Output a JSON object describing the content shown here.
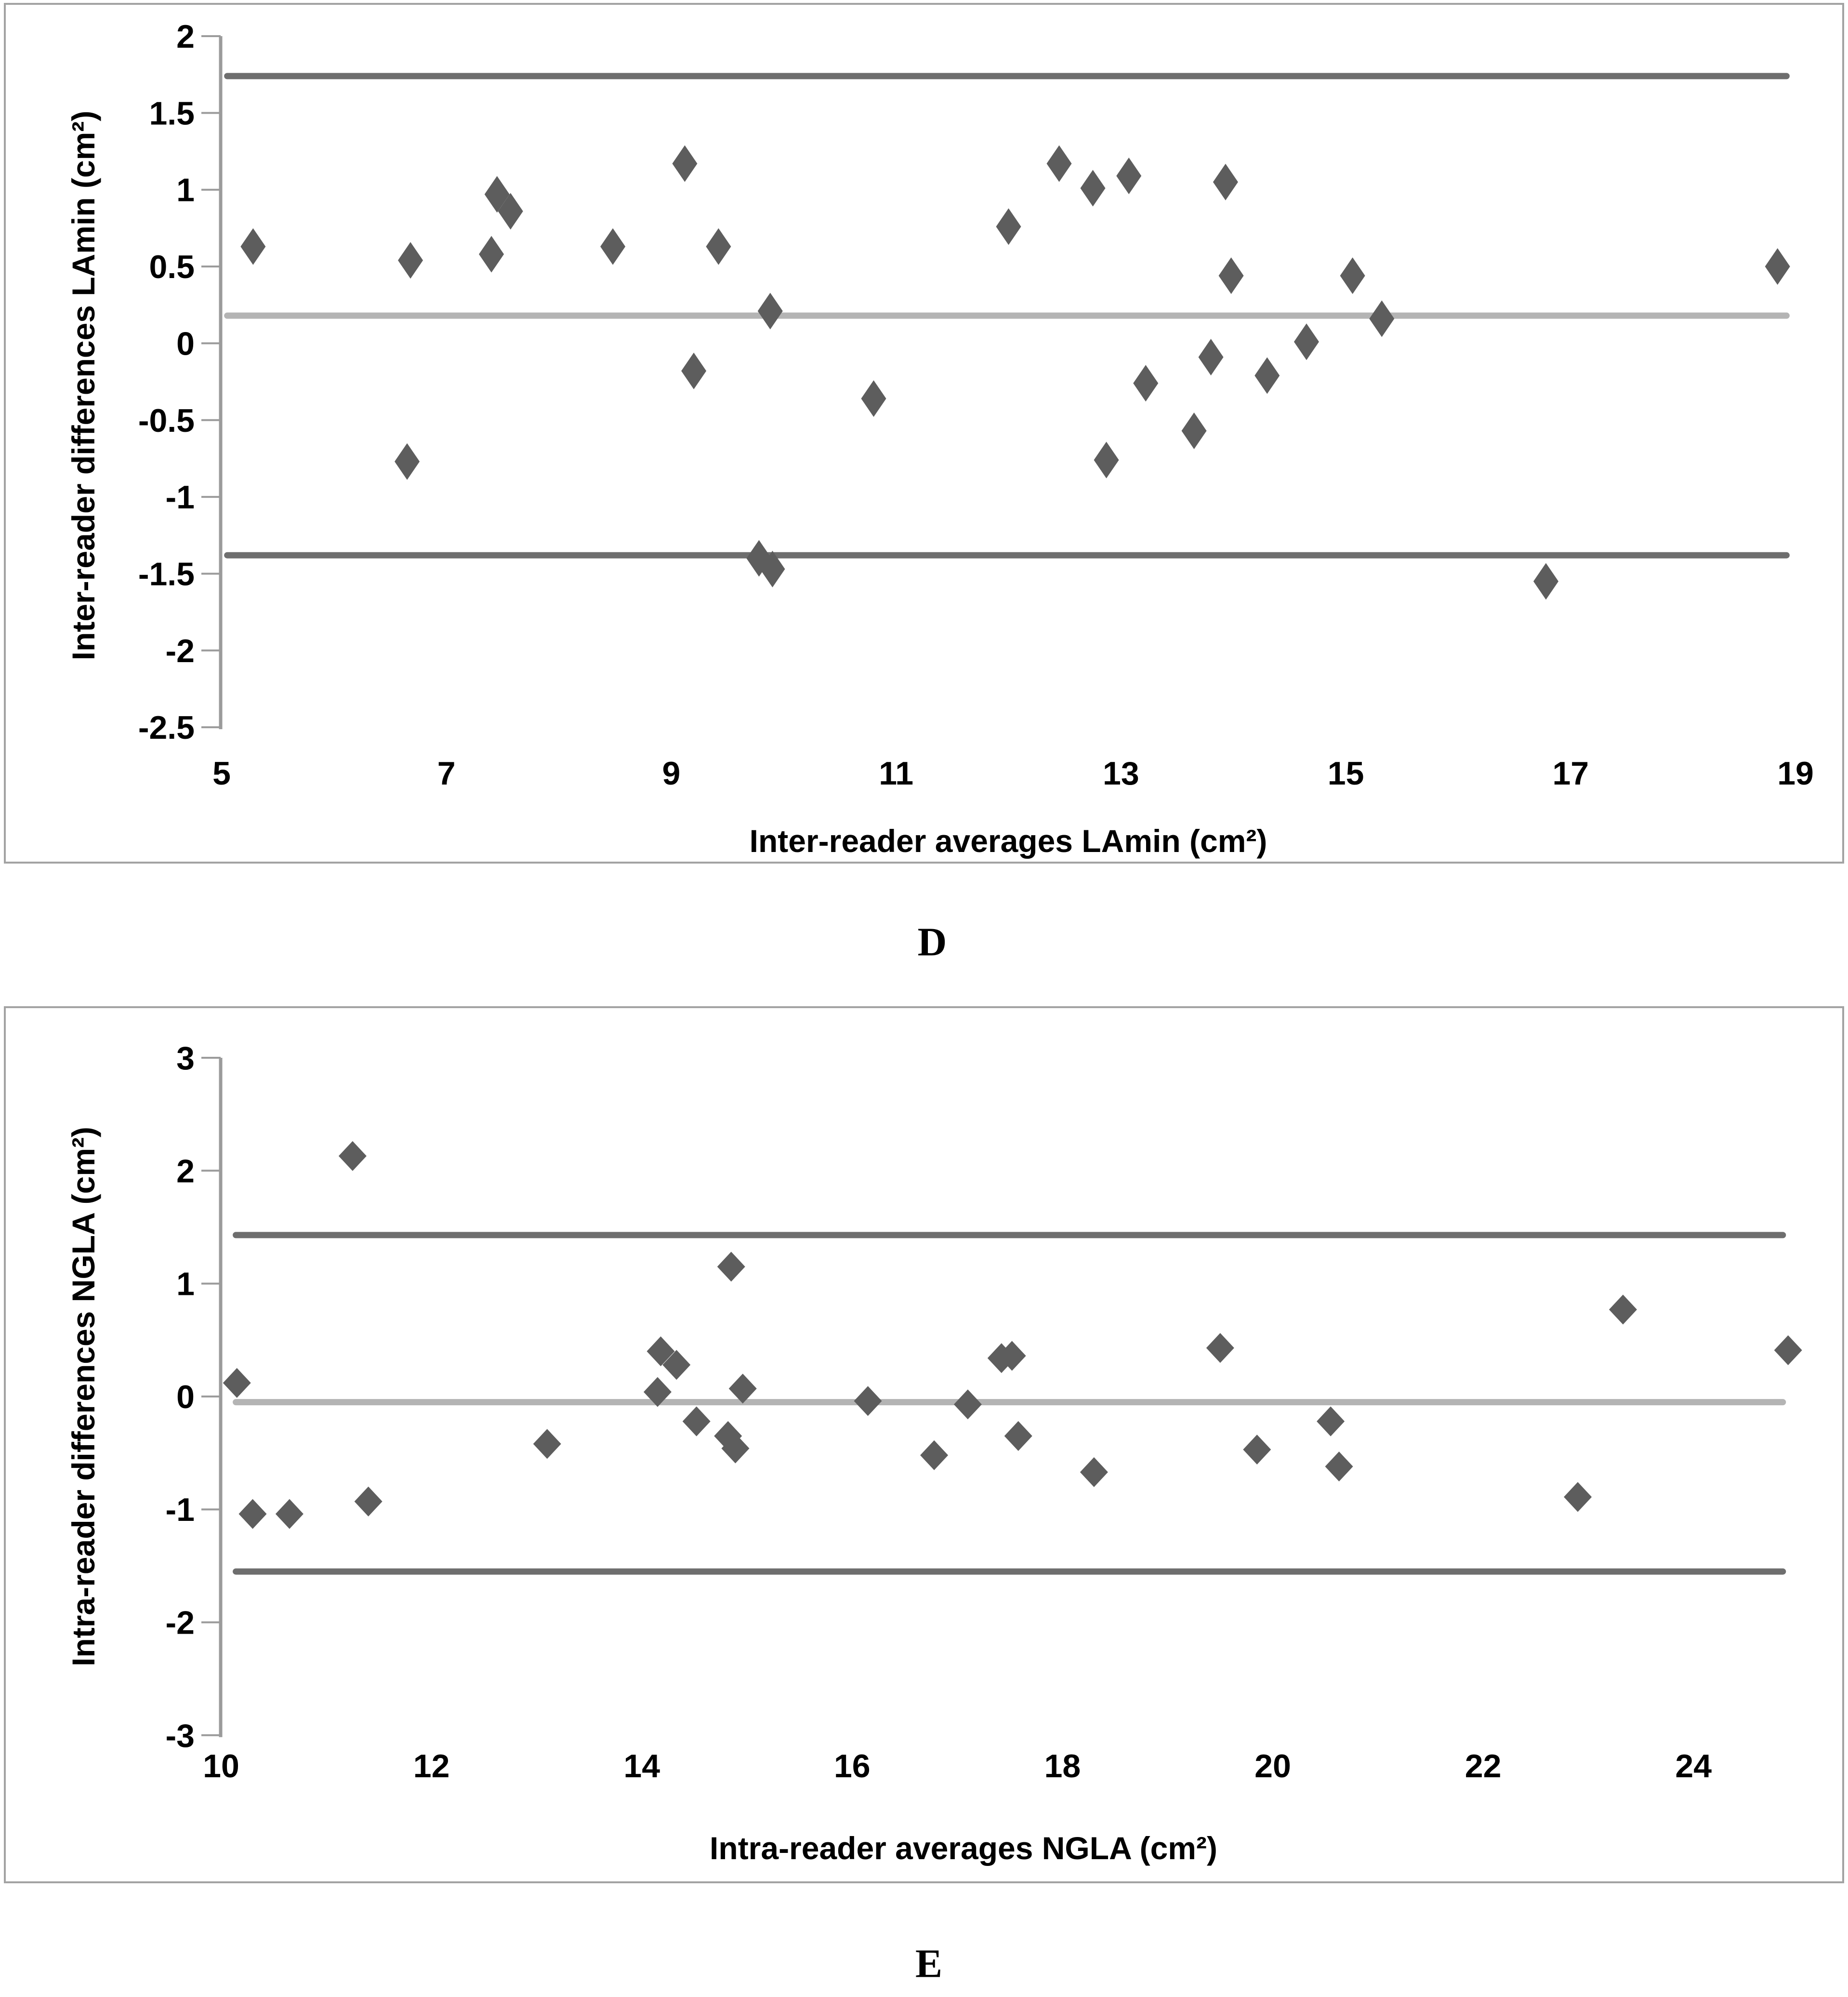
{
  "figure": {
    "panel_d_label": "D",
    "panel_e_label": "E"
  },
  "colors": {
    "marker": "#5d5d5d",
    "loa_line": "#6e6e6e",
    "mean_line": "#b4b4b4",
    "axis": "#9b9b9b",
    "panel_border": "#a3a3a3",
    "text": "#000000"
  },
  "chart_data": [
    {
      "type": "scatter",
      "panel_label": "D",
      "xlabel": "Inter-reader averages LAmin (cm²)",
      "ylabel": "Inter-reader differences LAmin (cm²)",
      "xlim": [
        5,
        19.45
      ],
      "ylim": [
        -2.5,
        2
      ],
      "x_ticks": [
        "5",
        "7",
        "9",
        "11",
        "13",
        "15",
        "17",
        "19"
      ],
      "x_tick_values": [
        5,
        7,
        9,
        11,
        13,
        15,
        17,
        19
      ],
      "y_ticks": [
        "2",
        "1.5",
        "1",
        "0.5",
        "0",
        "-0.5",
        "-1",
        "-1.5",
        "-2",
        "-2.5"
      ],
      "y_tick_values": [
        2,
        1.5,
        1,
        0.5,
        0,
        -0.5,
        -1,
        -1.5,
        -2,
        -2.5
      ],
      "grid": false,
      "legend": "none",
      "marker": "diamond",
      "lines": {
        "upper_loa": 1.74,
        "mean": 0.18,
        "lower_loa": -1.38
      },
      "line_span_x": [
        5.05,
        18.92
      ],
      "points": [
        [
          5.28,
          0.63
        ],
        [
          6.68,
          0.54
        ],
        [
          6.65,
          -0.77
        ],
        [
          7.4,
          0.58
        ],
        [
          7.45,
          0.97
        ],
        [
          7.57,
          0.86
        ],
        [
          8.48,
          0.63
        ],
        [
          9.12,
          1.17
        ],
        [
          9.2,
          -0.18
        ],
        [
          9.42,
          0.63
        ],
        [
          9.88,
          0.21
        ],
        [
          9.78,
          -1.4
        ],
        [
          9.9,
          -1.47
        ],
        [
          10.8,
          -0.36
        ],
        [
          12.0,
          0.76
        ],
        [
          12.45,
          1.17
        ],
        [
          12.75,
          1.01
        ],
        [
          13.07,
          1.09
        ],
        [
          12.87,
          -0.76
        ],
        [
          13.22,
          -0.26
        ],
        [
          13.65,
          -0.57
        ],
        [
          13.8,
          -0.09
        ],
        [
          13.93,
          1.05
        ],
        [
          13.98,
          0.44
        ],
        [
          14.3,
          -0.21
        ],
        [
          14.65,
          0.01
        ],
        [
          15.06,
          0.44
        ],
        [
          15.32,
          0.16
        ],
        [
          16.78,
          -1.55
        ],
        [
          18.84,
          0.5
        ]
      ]
    },
    {
      "type": "scatter",
      "panel_label": "E",
      "xlabel": "Intra-reader averages NGLA (cm²)",
      "ylabel": "Intra-reader differences NGLA (cm²)",
      "xlim": [
        10,
        25.4
      ],
      "ylim": [
        -3,
        3
      ],
      "x_ticks": [
        "10",
        "12",
        "14",
        "16",
        "18",
        "20",
        "22",
        "24"
      ],
      "x_tick_values": [
        10,
        12,
        14,
        16,
        18,
        20,
        22,
        24
      ],
      "y_ticks": [
        "3",
        "2",
        "1",
        "0",
        "-1",
        "-2",
        "-3"
      ],
      "y_tick_values": [
        3,
        2,
        1,
        0,
        -1,
        -2,
        -3
      ],
      "grid": false,
      "legend": "none",
      "marker": "diamond",
      "lines": {
        "upper_loa": 1.43,
        "mean": -0.05,
        "lower_loa": -1.55
      },
      "line_span_x": [
        10.14,
        24.85
      ],
      "points": [
        [
          10.15,
          0.12
        ],
        [
          10.3,
          -1.04
        ],
        [
          10.65,
          -1.04
        ],
        [
          11.25,
          2.13
        ],
        [
          11.4,
          -0.93
        ],
        [
          13.1,
          -0.42
        ],
        [
          14.15,
          0.04
        ],
        [
          14.18,
          0.4
        ],
        [
          14.33,
          0.28
        ],
        [
          14.52,
          -0.22
        ],
        [
          14.85,
          1.15
        ],
        [
          14.82,
          -0.35
        ],
        [
          14.89,
          -0.46
        ],
        [
          14.96,
          0.07
        ],
        [
          16.15,
          -0.04
        ],
        [
          16.78,
          -0.52
        ],
        [
          17.1,
          -0.07
        ],
        [
          17.42,
          0.34
        ],
        [
          17.52,
          0.36
        ],
        [
          17.58,
          -0.35
        ],
        [
          18.3,
          -0.67
        ],
        [
          19.5,
          0.43
        ],
        [
          19.85,
          -0.47
        ],
        [
          20.55,
          -0.22
        ],
        [
          20.63,
          -0.62
        ],
        [
          22.9,
          -0.89
        ],
        [
          23.33,
          0.77
        ],
        [
          24.9,
          0.41
        ]
      ]
    }
  ]
}
